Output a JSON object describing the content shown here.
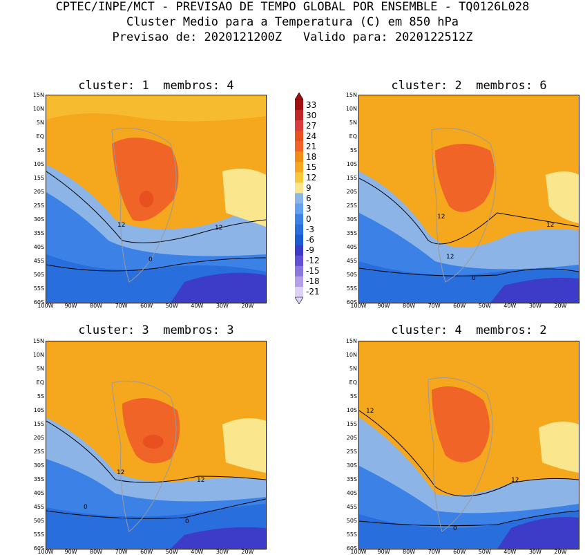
{
  "header": {
    "line1": "CPTEC/INPE/MCT - PREVISAO DE TEMPO GLOBAL POR ENSEMBLE - TQ0126L028",
    "line2": "Cluster Medio para a Temperatura (C) em 850 hPa",
    "line3": "Previsao de: 2020121200Z   Valido para: 2020122512Z"
  },
  "panels": [
    {
      "title": "cluster: 1  membros: 4",
      "contour_labels": [
        "12",
        "12",
        "0"
      ]
    },
    {
      "title": "cluster: 2  membros: 6",
      "contour_labels": [
        "12",
        "12",
        "12",
        "0"
      ]
    },
    {
      "title": "cluster: 3  membros: 3",
      "contour_labels": [
        "12",
        "12",
        "0",
        "0"
      ]
    },
    {
      "title": "cluster: 4  membros: 2",
      "contour_labels": [
        "12",
        "12",
        "0"
      ]
    }
  ],
  "lat_ticks": [
    "15N",
    "10N",
    "5N",
    "EQ",
    "5S",
    "10S",
    "15S",
    "20S",
    "25S",
    "30S",
    "35S",
    "40S",
    "45S",
    "50S",
    "55S",
    "60S"
  ],
  "lon_ticks": [
    "100W",
    "90W",
    "80W",
    "70W",
    "60W",
    "50W",
    "40W",
    "30W",
    "20W"
  ],
  "colorbar": {
    "labels": [
      "33",
      "30",
      "27",
      "24",
      "21",
      "18",
      "15",
      "12",
      "9",
      "6",
      "3",
      "0",
      "-3",
      "-6",
      "-9",
      "-12",
      "-15",
      "-18",
      "-21"
    ],
    "colors": [
      "#a01010",
      "#c02828",
      "#d83c3c",
      "#e85020",
      "#f06428",
      "#f08c14",
      "#f5a81e",
      "#f8c83c",
      "#fae68c",
      "#8cb4e6",
      "#64a0f0",
      "#3c82e6",
      "#286edc",
      "#1e5ad2",
      "#3c3cc8",
      "#6450d2",
      "#8c78dc",
      "#b4a0e6",
      "#dcd2f5"
    ]
  }
}
